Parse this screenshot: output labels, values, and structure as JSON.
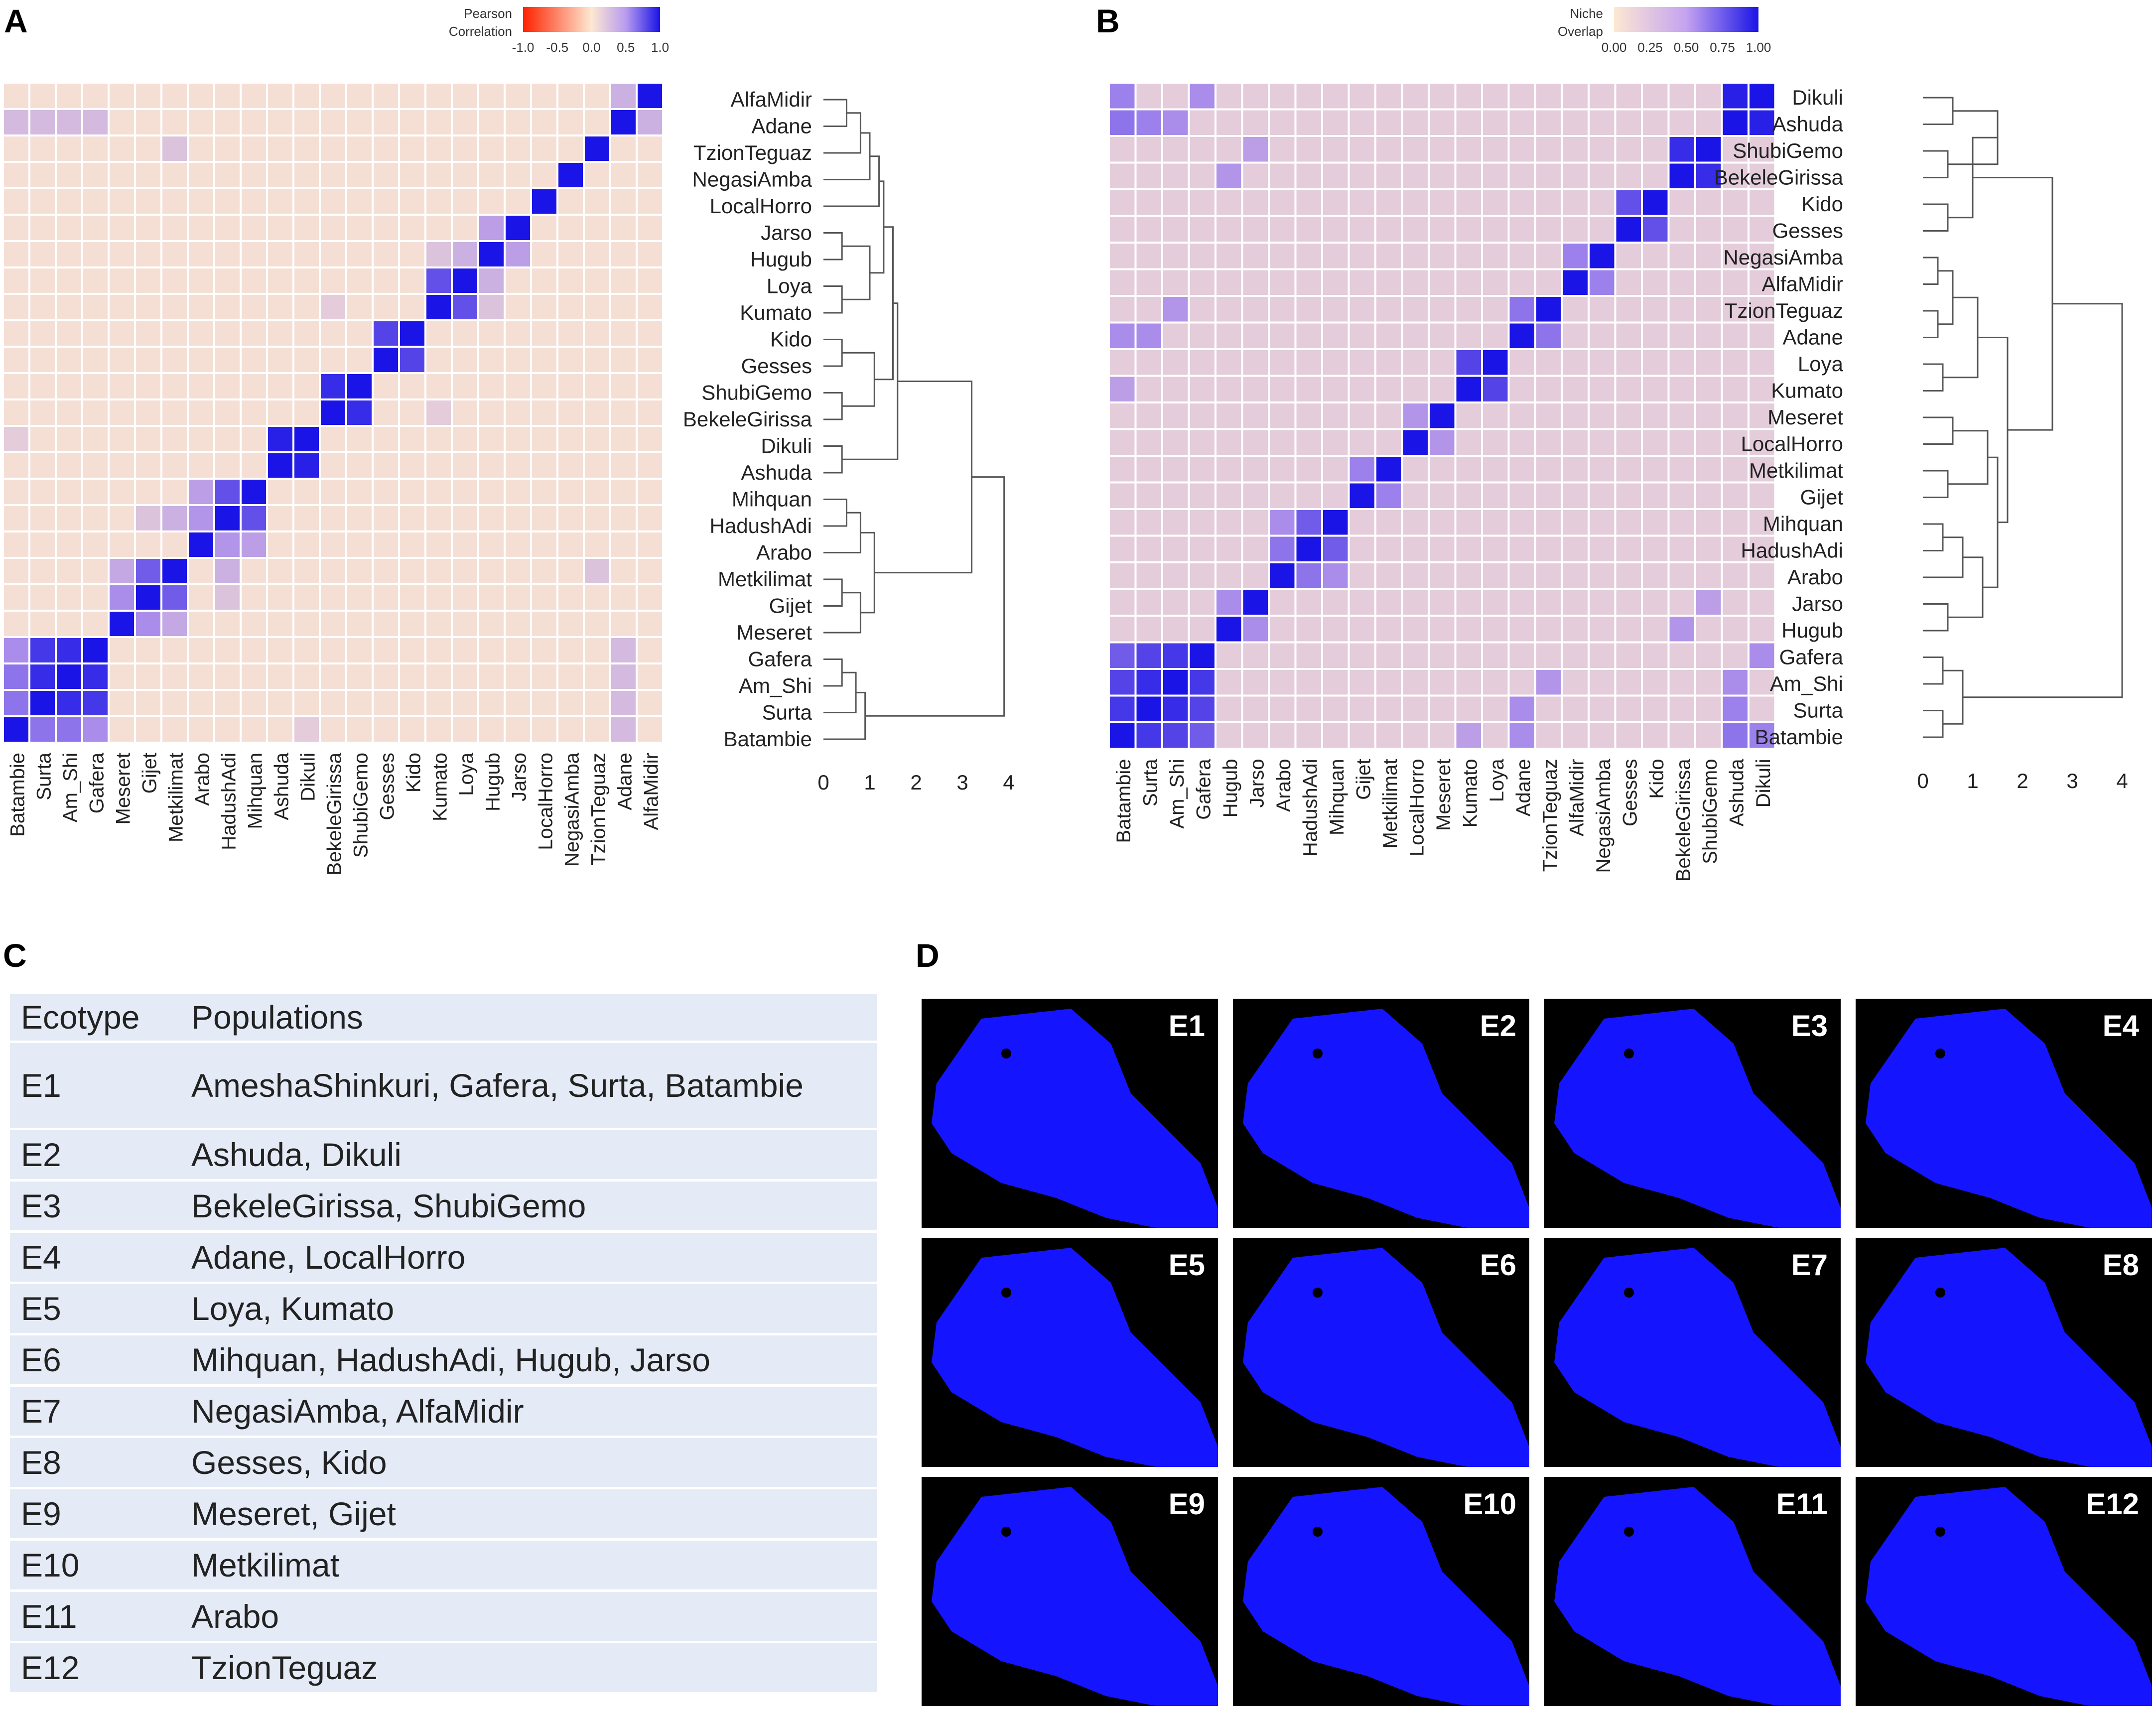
{
  "panels": {
    "a": "A",
    "b": "B",
    "c": "C",
    "d": "D"
  },
  "panel_a": {
    "legend_title": [
      "Pearson",
      "Correlation"
    ],
    "legend_ticks": [
      "-1.0",
      "-0.5",
      "0.0",
      "0.5",
      "1.0"
    ],
    "x_labels": [
      "Batambie",
      "Surta",
      "Am_Shi",
      "Gafera",
      "Meseret",
      "Gijet",
      "Metkilimat",
      "Arabo",
      "HadushAdi",
      "Mihquan",
      "Ashuda",
      "Dikuli",
      "BekeleGirissa",
      "ShubiGemo",
      "Gesses",
      "Kido",
      "Kumato",
      "Loya",
      "Hugub",
      "Jarso",
      "LocalHorro",
      "NegasiAmba",
      "TzionTeguaz",
      "Adane",
      "AlfaMidir"
    ],
    "dendro_labels": [
      "AlfaMidir",
      "Adane",
      "TzionTeguaz",
      "NegasiAmba",
      "LocalHorro",
      "Jarso",
      "Hugub",
      "Loya",
      "Kumato",
      "Kido",
      "Gesses",
      "ShubiGemo",
      "BekeleGirissa",
      "Dikuli",
      "Ashuda",
      "Mihquan",
      "HadushAdi",
      "Arabo",
      "Metkilimat",
      "Gijet",
      "Meseret",
      "Gafera",
      "Am_Shi",
      "Surta",
      "Batambie"
    ],
    "dendro_axis": [
      "0",
      "1",
      "2",
      "3",
      "4"
    ]
  },
  "panel_b": {
    "legend_title": [
      "Niche",
      "Overlap"
    ],
    "legend_ticks": [
      "0.00",
      "0.25",
      "0.50",
      "0.75",
      "1.00"
    ],
    "x_labels": [
      "Batambie",
      "Surta",
      "Am_Shi",
      "Gafera",
      "Hugub",
      "Jarso",
      "Arabo",
      "HadushAdi",
      "Mihquan",
      "Gijet",
      "Metkilimat",
      "LocalHorro",
      "Meseret",
      "Kumato",
      "Loya",
      "Adane",
      "TzionTeguaz",
      "AlfaMidir",
      "NegasiAmba",
      "Gesses",
      "Kido",
      "BekeleGirissa",
      "ShubiGemo",
      "Ashuda",
      "Dikuli"
    ],
    "dendro_labels": [
      "Dikuli",
      "Ashuda",
      "ShubiGemo",
      "BekeleGirissa",
      "Kido",
      "Gesses",
      "NegasiAmba",
      "AlfaMidir",
      "TzionTeguaz",
      "Adane",
      "Loya",
      "Kumato",
      "Meseret",
      "LocalHorro",
      "Metkilimat",
      "Gijet",
      "Mihquan",
      "HadushAdi",
      "Arabo",
      "Jarso",
      "Hugub",
      "Gafera",
      "Am_Shi",
      "Surta",
      "Batambie"
    ],
    "dendro_axis": [
      "0",
      "1",
      "2",
      "3",
      "4"
    ]
  },
  "chart_data": [
    {
      "type": "heatmap",
      "title": "A",
      "legend": "Pearson Correlation",
      "range": [
        -1.0,
        1.0
      ],
      "labels": [
        "Batambie",
        "Surta",
        "Am_Shi",
        "Gafera",
        "Meseret",
        "Gijet",
        "Metkilimat",
        "Arabo",
        "HadushAdi",
        "Mihquan",
        "Ashuda",
        "Dikuli",
        "BekeleGirissa",
        "ShubiGemo",
        "Gesses",
        "Kido",
        "Kumato",
        "Loya",
        "Hugub",
        "Jarso",
        "LocalHorro",
        "NegasiAmba",
        "TzionTeguaz",
        "Adane",
        "AlfaMidir"
      ],
      "diagonal": 1.0,
      "pairs": [
        {
          "a": "Batambie",
          "b": "Surta",
          "v": 0.6
        },
        {
          "a": "Batambie",
          "b": "Am_Shi",
          "v": 0.6
        },
        {
          "a": "Batambie",
          "b": "Gafera",
          "v": 0.5
        },
        {
          "a": "Surta",
          "b": "Am_Shi",
          "v": 0.9
        },
        {
          "a": "Surta",
          "b": "Gafera",
          "v": 0.85
        },
        {
          "a": "Am_Shi",
          "b": "Gafera",
          "v": 0.9
        },
        {
          "a": "Meseret",
          "b": "Gijet",
          "v": 0.5
        },
        {
          "a": "Meseret",
          "b": "Metkilimat",
          "v": 0.35
        },
        {
          "a": "Gijet",
          "b": "Metkilimat",
          "v": 0.7
        },
        {
          "a": "Arabo",
          "b": "HadushAdi",
          "v": 0.45
        },
        {
          "a": "Arabo",
          "b": "Mihquan",
          "v": 0.4
        },
        {
          "a": "HadushAdi",
          "b": "Mihquan",
          "v": 0.75
        },
        {
          "a": "Metkilimat",
          "b": "HadushAdi",
          "v": 0.3
        },
        {
          "a": "Gijet",
          "b": "HadushAdi",
          "v": 0.2
        },
        {
          "a": "Ashuda",
          "b": "Dikuli",
          "v": 0.95
        },
        {
          "a": "BekeleGirissa",
          "b": "ShubiGemo",
          "v": 0.9
        },
        {
          "a": "Gesses",
          "b": "Kido",
          "v": 0.8
        },
        {
          "a": "Kumato",
          "b": "Loya",
          "v": 0.75
        },
        {
          "a": "Hugub",
          "b": "Jarso",
          "v": 0.4
        },
        {
          "a": "Loya",
          "b": "Hugub",
          "v": 0.3
        },
        {
          "a": "Kumato",
          "b": "Hugub",
          "v": 0.2
        },
        {
          "a": "Adane",
          "b": "AlfaMidir",
          "v": 0.3
        },
        {
          "a": "Batambie",
          "b": "Adane",
          "v": 0.25
        },
        {
          "a": "Surta",
          "b": "Adane",
          "v": 0.25
        },
        {
          "a": "Am_Shi",
          "b": "Adane",
          "v": 0.25
        },
        {
          "a": "Gafera",
          "b": "Adane",
          "v": 0.25
        },
        {
          "a": "Batambie",
          "b": "Dikuli",
          "v": 0.15
        },
        {
          "a": "TzionTeguaz",
          "b": "Metkilimat",
          "v": 0.2
        },
        {
          "a": "BekeleGirissa",
          "b": "Kumato",
          "v": 0.15
        }
      ]
    },
    {
      "type": "heatmap",
      "title": "B",
      "legend": "Niche Overlap",
      "range": [
        0.0,
        1.0
      ],
      "labels": [
        "Batambie",
        "Surta",
        "Am_Shi",
        "Gafera",
        "Hugub",
        "Jarso",
        "Arabo",
        "HadushAdi",
        "Mihquan",
        "Gijet",
        "Metkilimat",
        "LocalHorro",
        "Meseret",
        "Kumato",
        "Loya",
        "Adane",
        "TzionTeguaz",
        "AlfaMidir",
        "NegasiAmba",
        "Gesses",
        "Kido",
        "BekeleGirissa",
        "ShubiGemo",
        "Ashuda",
        "Dikuli"
      ],
      "diagonal": 1.0,
      "pairs": [
        {
          "a": "Batambie",
          "b": "Surta",
          "v": 0.85
        },
        {
          "a": "Batambie",
          "b": "Am_Shi",
          "v": 0.8
        },
        {
          "a": "Batambie",
          "b": "Gafera",
          "v": 0.7
        },
        {
          "a": "Surta",
          "b": "Am_Shi",
          "v": 0.9
        },
        {
          "a": "Surta",
          "b": "Gafera",
          "v": 0.8
        },
        {
          "a": "Am_Shi",
          "b": "Gafera",
          "v": 0.85
        },
        {
          "a": "Ashuda",
          "b": "Dikuli",
          "v": 0.95
        },
        {
          "a": "BekeleGirissa",
          "b": "ShubiGemo",
          "v": 0.9
        },
        {
          "a": "Gesses",
          "b": "Kido",
          "v": 0.75
        },
        {
          "a": "Kumato",
          "b": "Loya",
          "v": 0.8
        },
        {
          "a": "Adane",
          "b": "TzionTeguaz",
          "v": 0.6
        },
        {
          "a": "AlfaMidir",
          "b": "NegasiAmba",
          "v": 0.55
        },
        {
          "a": "HadushAdi",
          "b": "Mihquan",
          "v": 0.7
        },
        {
          "a": "Arabo",
          "b": "HadushAdi",
          "v": 0.6
        },
        {
          "a": "Arabo",
          "b": "Mihquan",
          "v": 0.5
        },
        {
          "a": "Gijet",
          "b": "Metkilimat",
          "v": 0.55
        },
        {
          "a": "Hugub",
          "b": "Jarso",
          "v": 0.5
        },
        {
          "a": "Meseret",
          "b": "LocalHorro",
          "v": 0.45
        },
        {
          "a": "Batambie",
          "b": "Ashuda",
          "v": 0.6
        },
        {
          "a": "Batambie",
          "b": "Dikuli",
          "v": 0.55
        },
        {
          "a": "Surta",
          "b": "Ashuda",
          "v": 0.55
        },
        {
          "a": "Am_Shi",
          "b": "Ashuda",
          "v": 0.5
        },
        {
          "a": "Gafera",
          "b": "Dikuli",
          "v": 0.5
        },
        {
          "a": "Batambie",
          "b": "Adane",
          "v": 0.5
        },
        {
          "a": "Surta",
          "b": "Adane",
          "v": 0.5
        },
        {
          "a": "Am_Shi",
          "b": "TzionTeguaz",
          "v": 0.45
        },
        {
          "a": "Hugub",
          "b": "BekeleGirissa",
          "v": 0.45
        },
        {
          "a": "Jarso",
          "b": "ShubiGemo",
          "v": 0.4
        },
        {
          "a": "Batambie",
          "b": "Kumato",
          "v": 0.4
        }
      ]
    },
    {
      "type": "table",
      "title": "C",
      "columns": [
        "Ecotype",
        "Populations"
      ],
      "rows": [
        [
          "E1",
          "AmeshaShinkuri, Gafera, Surta, Batambie"
        ],
        [
          "E2",
          "Ashuda, Dikuli"
        ],
        [
          "E3",
          "BekeleGirissa, ShubiGemo"
        ],
        [
          "E4",
          "Adane, LocalHorro"
        ],
        [
          "E5",
          "Loya, Kumato"
        ],
        [
          "E6",
          "Mihquan, HadushAdi, Hugub, Jarso"
        ],
        [
          "E7",
          "NegasiAmba, AlfaMidir"
        ],
        [
          "E8",
          "Gesses, Kido"
        ],
        [
          "E9",
          "Meseret, Gijet"
        ],
        [
          "E10",
          "Metkilimat"
        ],
        [
          "E11",
          "Arabo"
        ],
        [
          "E12",
          "TzionTeguaz"
        ]
      ]
    }
  ],
  "table_c": {
    "header": {
      "ecotype": "Ecotype",
      "populations": "Populations"
    },
    "rows": [
      {
        "e": "E1",
        "p": "AmeshaShinkuri, Gafera, Surta, Batambie"
      },
      {
        "e": "E2",
        "p": "Ashuda, Dikuli"
      },
      {
        "e": "E3",
        "p": "BekeleGirissa, ShubiGemo"
      },
      {
        "e": "E4",
        "p": "Adane, LocalHorro"
      },
      {
        "e": "E5",
        "p": "Loya, Kumato"
      },
      {
        "e": "E6",
        "p": "Mihquan, HadushAdi, Hugub, Jarso"
      },
      {
        "e": "E7",
        "p": "NegasiAmba, AlfaMidir"
      },
      {
        "e": "E8",
        "p": "Gesses, Kido"
      },
      {
        "e": "E9",
        "p": "Meseret, Gijet"
      },
      {
        "e": "E10",
        "p": "Metkilimat"
      },
      {
        "e": "E11",
        "p": "Arabo"
      },
      {
        "e": "E12",
        "p": "TzionTeguaz"
      }
    ]
  },
  "maps_d": [
    "E1",
    "E2",
    "E3",
    "E4",
    "E5",
    "E6",
    "E7",
    "E8",
    "E9",
    "E10",
    "E11",
    "E12"
  ],
  "colors": {
    "high": "#1a14e6",
    "neutral": "#fde8d2",
    "low": "#ff2200",
    "map_bg": "#000000",
    "map_land": "#1414ff",
    "table_bg": "#e5ebf6"
  }
}
